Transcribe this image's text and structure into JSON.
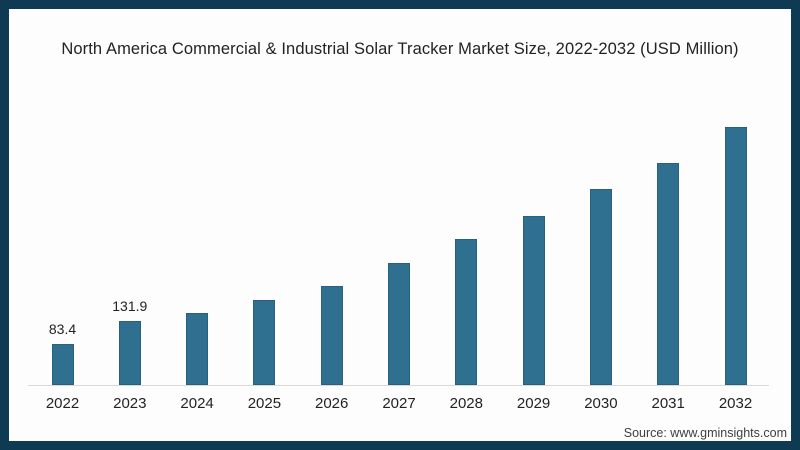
{
  "chart_data": {
    "type": "bar",
    "title": "North America Commercial & Industrial Solar Tracker Market Size, 2022-2032 (USD Million)",
    "categories": [
      "2022",
      "2023",
      "2024",
      "2025",
      "2026",
      "2027",
      "2028",
      "2029",
      "2030",
      "2031",
      "2032"
    ],
    "values": [
      83.4,
      131.9,
      149,
      174,
      204,
      251,
      300,
      347,
      403,
      456,
      530
    ],
    "data_labels": [
      "83.4",
      "131.9",
      "",
      "",
      "",
      "",
      "",
      "",
      "",
      "",
      ""
    ],
    "xlabel": "",
    "ylabel": "",
    "ylim": [
      0,
      560
    ],
    "grid": false,
    "legend": false,
    "bar_color": "#2f7090",
    "bar_edge_color": "#27617f",
    "axis_line_color": "#d9d9d9",
    "frame_color": "#0e3a53",
    "source": "Source: www.gminsights.com"
  }
}
